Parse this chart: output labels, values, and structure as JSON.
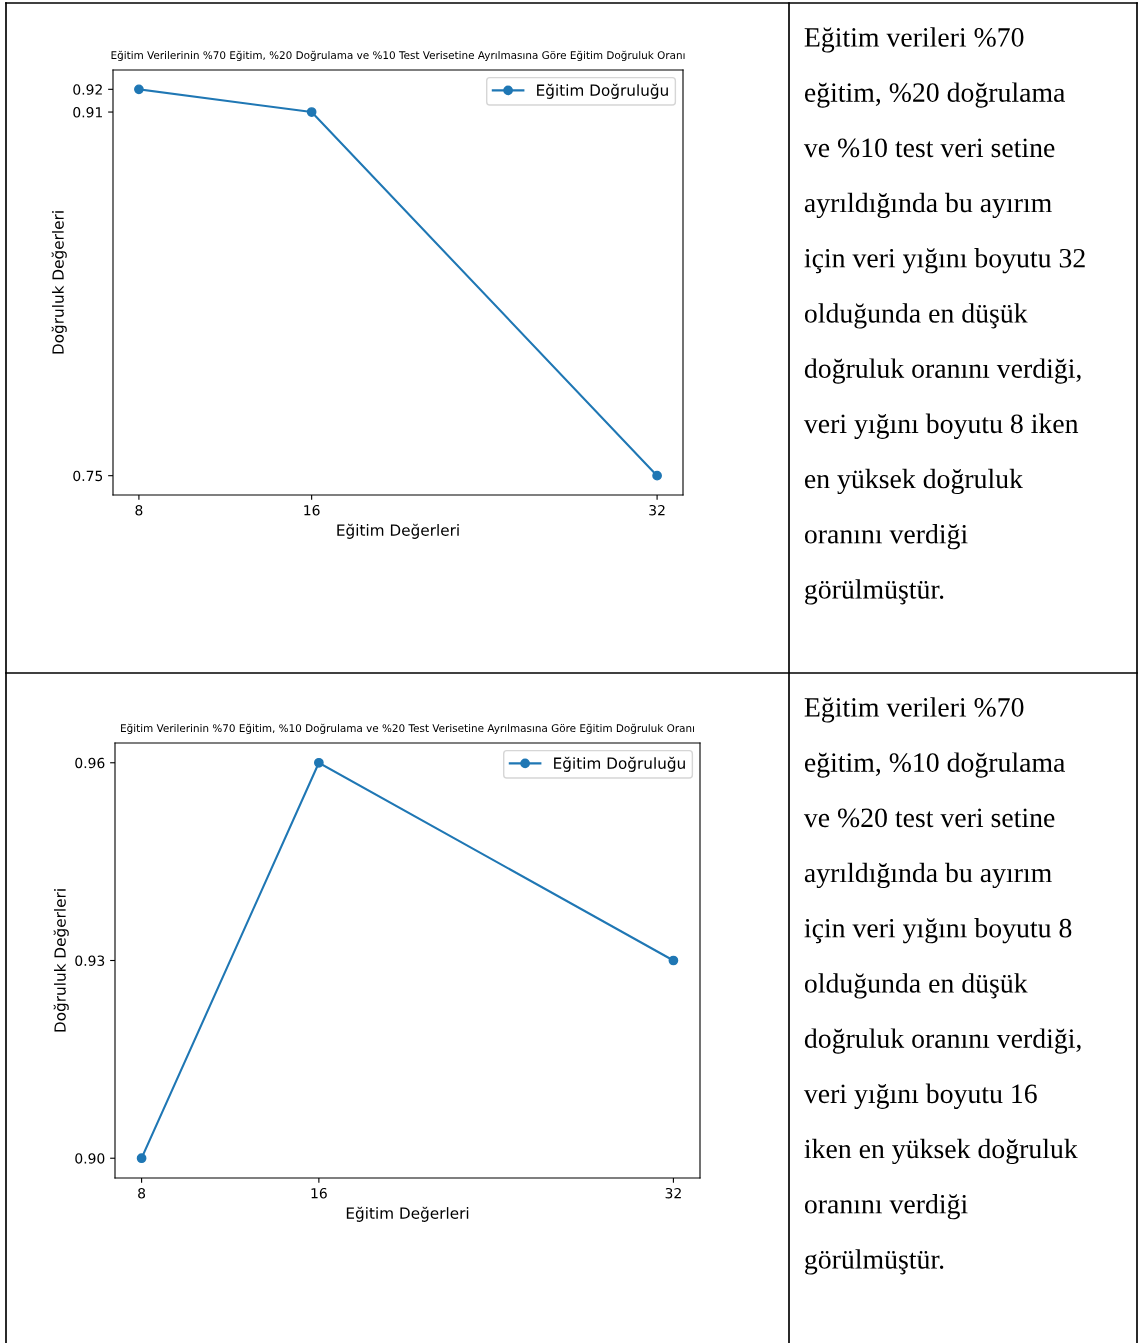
{
  "chart_data": [
    {
      "type": "line",
      "title": "Eğitim Verilerinin %70 Eğitim, %20 Doğrulama ve %10 Test Verisetine Ayrılmasına Göre Eğitim Doğruluk Oranı",
      "xlabel": "Eğitim Değerleri",
      "ylabel": "Doğruluk Değerleri",
      "x": [
        8,
        16,
        32
      ],
      "series": [
        {
          "name": "Eğitim Doğruluğu",
          "color": "#1f77b4",
          "values": [
            0.92,
            0.91,
            0.75
          ]
        }
      ],
      "xlim": [
        6.8,
        33.2
      ],
      "xticks": [
        8,
        16,
        32
      ],
      "ylim": [
        0.7415,
        0.9285
      ],
      "yticks": [
        0.92,
        0.91,
        0.75
      ],
      "marker": "circle",
      "line_style": "solid",
      "legend": "top right",
      "grid": false
    },
    {
      "type": "other",
      "annotations": [
        "Eğitim verileri %70",
        "eğitim, %20 doğrulama",
        "ve %10 test veri setine",
        "ayrıldığında bu ayırım",
        "için veri yığını boyutu 32",
        "olduğunda en düşük",
        "doğruluk oranını verdiği,",
        "veri yığını boyutu 8 iken",
        "en yüksek doğruluk",
        "oranını verdiği",
        "görülmüştür."
      ]
    },
    {
      "type": "line",
      "title": "Eğitim Verilerinin %70 Eğitim, %10 Doğrulama ve %20 Test Verisetine Ayrılmasına Göre Eğitim Doğruluk Oranı",
      "xlabel": "Eğitim Değerleri",
      "ylabel": "Doğruluk Değerleri",
      "x": [
        8,
        16,
        32
      ],
      "series": [
        {
          "name": "Eğitim Doğruluğu",
          "color": "#1f77b4",
          "values": [
            0.9,
            0.96,
            0.93
          ]
        }
      ],
      "xlim": [
        6.8,
        33.2
      ],
      "xticks": [
        8,
        16,
        32
      ],
      "ylim": [
        0.897,
        0.963
      ],
      "yticks": [
        0.96,
        0.93,
        {
          "value": 0.9,
          "label": "0.90"
        }
      ],
      "marker": "circle",
      "line_style": "solid",
      "legend": "top right",
      "grid": false
    },
    {
      "type": "other",
      "annotations": [
        "Eğitim verileri %70",
        "eğitim, %10 doğrulama",
        "ve %20 test veri setine",
        "ayrıldığında bu ayırım",
        "için veri yığını boyutu 8",
        "olduğunda en düşük",
        "doğruluk oranını verdiği,",
        "veri yığını boyutu 16",
        "iken en yüksek doğruluk",
        "oranını verdiği",
        "görülmüştür."
      ]
    }
  ]
}
